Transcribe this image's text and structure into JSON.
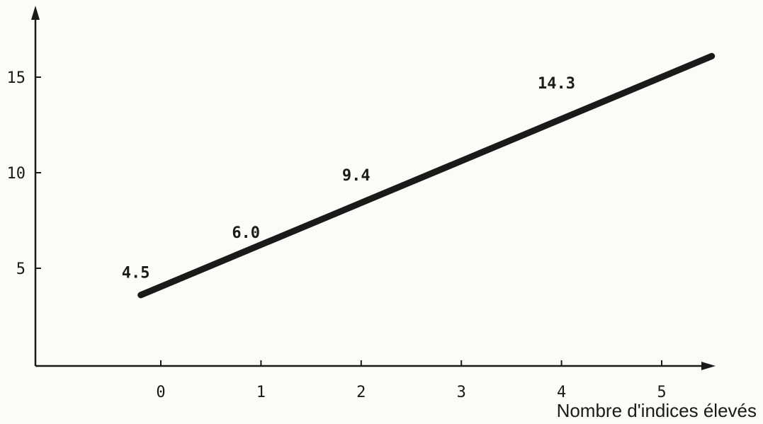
{
  "chart_data": {
    "type": "line",
    "title": "",
    "xlabel": "Nombre d'indices élevés",
    "ylabel": "",
    "x_ticks": [
      "0",
      "1",
      "2",
      "3",
      "4",
      "5"
    ],
    "y_ticks": [
      "5",
      "10",
      "15"
    ],
    "xlim": [
      -0.4,
      5.5
    ],
    "ylim": [
      0,
      18
    ],
    "grid": false,
    "series": [
      {
        "x": [
          -0.2,
          5.5
        ],
        "y": [
          3.6,
          16.1
        ]
      }
    ],
    "annotations": [
      {
        "text": "4.5",
        "x": -0.25,
        "y": 4.5
      },
      {
        "text": "6.0",
        "x": 0.85,
        "y": 6.6
      },
      {
        "text": "9.4",
        "x": 1.95,
        "y": 9.6
      },
      {
        "text": "14.3",
        "x": 3.95,
        "y": 14.4
      }
    ],
    "colors": {
      "line": "#1a1a1a",
      "axis": "#1a1a1a",
      "text": "#1a1a1a"
    }
  }
}
